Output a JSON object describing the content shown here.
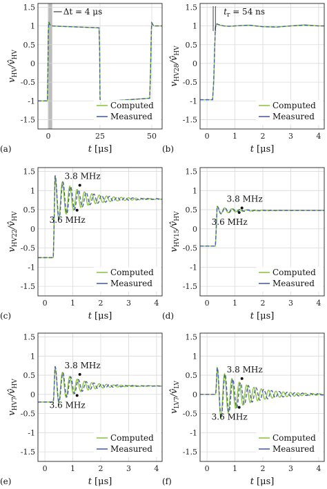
{
  "colors": {
    "computed": "#8cc63f",
    "measured": "#4a5fa0",
    "shade": "#bdbdbd"
  },
  "chart_data": [
    {
      "id": "a",
      "type": "line",
      "panel_tag": "(a)",
      "ylabel_main": "v",
      "ylabel_sub": "HV",
      "ylabel_den": "v̂",
      "ylabel_den_sub": "HV",
      "xlabel_main": "t",
      "xlabel_unit": "[μs]",
      "xlim": [
        -5,
        55
      ],
      "ylim": [
        -1.75,
        1.6
      ],
      "xticks": [
        0,
        25,
        50
      ],
      "xtick_labels": [
        "0",
        "25",
        "50"
      ],
      "yticks": [
        -1.5,
        -1,
        -0.5,
        0,
        0.5,
        1,
        1.5
      ],
      "ytick_labels": [
        "-1.5",
        "-1",
        "-0.5",
        "0",
        "0.5",
        "1",
        "1.5"
      ],
      "shade": [
        -0.2,
        1.9
      ],
      "annotation": "Δt = 4 μs",
      "legend": [
        "Computed",
        "Measured"
      ],
      "series": [
        {
          "name": "Computed",
          "x": [
            -5,
            -0.4,
            -0.2,
            0,
            0.2,
            0.5,
            1,
            2,
            5,
            24.5,
            24.8,
            25,
            25.3,
            26,
            30,
            49,
            49.4,
            49.8,
            50,
            50.4,
            51,
            55
          ],
          "y": [
            -1,
            -1,
            -0.2,
            0.8,
            1.12,
            1.08,
            1.02,
            1.0,
            0.99,
            0.95,
            0.4,
            -0.95,
            -1.1,
            -1.02,
            -1.0,
            -0.93,
            -0.2,
            0.9,
            1.1,
            1.05,
            1.0,
            1.0
          ]
        },
        {
          "name": "Measured",
          "x": [
            -5,
            -0.4,
            -0.2,
            0,
            0.2,
            0.5,
            1,
            2,
            5,
            24.5,
            24.8,
            25,
            25.3,
            26,
            30,
            49,
            49.4,
            49.8,
            50,
            50.4,
            51,
            55
          ],
          "y": [
            -1,
            -1,
            -0.25,
            0.78,
            1.1,
            1.07,
            1.01,
            1.0,
            0.99,
            0.95,
            0.42,
            -0.93,
            -1.08,
            -1.02,
            -1.0,
            -0.93,
            -0.22,
            0.88,
            1.08,
            1.04,
            1.0,
            1.0
          ]
        }
      ]
    },
    {
      "id": "b",
      "type": "line",
      "panel_tag": "(b)",
      "ylabel_main": "v",
      "ylabel_sub": "HV28",
      "ylabel_den": "v̂",
      "ylabel_den_sub": "HV",
      "xlabel_main": "t",
      "xlabel_unit": "[μs]",
      "xlim": [
        -0.25,
        4.2
      ],
      "ylim": [
        -1.75,
        1.6
      ],
      "xticks": [
        0,
        1,
        2,
        3,
        4
      ],
      "xtick_labels": [
        "0",
        "1",
        "2",
        "3",
        "4"
      ],
      "yticks": [
        -1.5,
        -1,
        -0.5,
        0,
        0.5,
        1,
        1.5
      ],
      "ytick_labels": [
        "-1.5",
        "-1",
        "-0.5",
        "0",
        "0.5",
        "1",
        "1.5"
      ],
      "annotation_main": "t",
      "annotation_sub": "r",
      "annotation_rest": " = 54 ns",
      "legend": [
        "Computed",
        "Measured"
      ],
      "series": [
        {
          "name": "Computed",
          "x": [
            -0.25,
            0.2,
            0.24,
            0.28,
            0.3,
            0.35,
            0.45,
            0.6,
            0.8,
            1,
            1.5,
            2,
            2.5,
            3,
            3.5,
            4,
            4.2
          ],
          "y": [
            -0.97,
            -0.97,
            -0.5,
            0.5,
            0.95,
            1.06,
            1.02,
            1.0,
            0.99,
            1.0,
            1.02,
            0.98,
            0.97,
            1.0,
            1.03,
            1.0,
            1.0
          ]
        },
        {
          "name": "Measured",
          "x": [
            -0.25,
            0.2,
            0.24,
            0.28,
            0.3,
            0.35,
            0.45,
            0.6,
            0.8,
            1,
            1.5,
            2,
            2.5,
            3,
            3.5,
            4,
            4.2
          ],
          "y": [
            -0.97,
            -0.97,
            -0.45,
            0.55,
            0.96,
            1.05,
            1.03,
            1.0,
            0.99,
            1.0,
            1.02,
            0.98,
            0.97,
            1.0,
            1.02,
            1.0,
            1.0
          ]
        }
      ]
    },
    {
      "id": "c",
      "type": "line",
      "panel_tag": "(c)",
      "ylabel_main": "v",
      "ylabel_sub": "HV22",
      "ylabel_den": "v̂",
      "ylabel_den_sub": "HV",
      "xlabel_main": "t",
      "xlabel_unit": "[μs]",
      "xlim": [
        -0.25,
        4.2
      ],
      "ylim": [
        -1.75,
        1.6
      ],
      "xticks": [
        0,
        1,
        2,
        3,
        4
      ],
      "xtick_labels": [
        "0",
        "1",
        "2",
        "3",
        "4"
      ],
      "yticks": [
        -1.5,
        -1,
        -0.5,
        0,
        0.5,
        1,
        1.5
      ],
      "ytick_labels": [
        "-1.5",
        "-1",
        "-0.5",
        "0",
        "0.5",
        "1",
        "1.5"
      ],
      "osc": {
        "t0": 0.3,
        "y0": -0.75,
        "final": 0.78,
        "amp": 0.65,
        "tau": 0.9,
        "f_computed": 3.8,
        "f_measured": 3.6
      },
      "annotation_top": "3.8 MHz",
      "annotation_bottom": "3.6 MHz",
      "legend": [
        "Computed",
        "Measured"
      ]
    },
    {
      "id": "d",
      "type": "line",
      "panel_tag": "(d)",
      "ylabel_main": "v",
      "ylabel_sub": "HV15",
      "ylabel_den": "v̂",
      "ylabel_den_sub": "HV",
      "xlabel_main": "t",
      "xlabel_unit": "[μs]",
      "xlim": [
        -0.25,
        4.2
      ],
      "ylim": [
        -1.75,
        1.6
      ],
      "xticks": [
        0,
        1,
        2,
        3,
        4
      ],
      "xtick_labels": [
        "0",
        "1",
        "2",
        "3",
        "4"
      ],
      "yticks": [
        -1.5,
        -1,
        -0.5,
        0,
        0.5,
        1,
        1.5
      ],
      "ytick_labels": [
        "-1.5",
        "-1",
        "-0.5",
        "0",
        "0.5",
        "1",
        "1.5"
      ],
      "osc": {
        "t0": 0.3,
        "y0": -0.45,
        "final": 0.48,
        "amp": 0.12,
        "tau": 0.6,
        "f_computed": 3.8,
        "f_measured": 3.6
      },
      "annotation_top": "3.8 MHz",
      "annotation_bottom": "3.6 MHz",
      "legend": [
        "Computed",
        "Measured"
      ]
    },
    {
      "id": "e",
      "type": "line",
      "panel_tag": "(e)",
      "ylabel_main": "v",
      "ylabel_sub": "HV7",
      "ylabel_den": "v̂",
      "ylabel_den_sub": "HV",
      "xlabel_main": "t",
      "xlabel_unit": "[μs]",
      "xlim": [
        -0.25,
        4.2
      ],
      "ylim": [
        -1.75,
        1.6
      ],
      "xticks": [
        0,
        1,
        2,
        3,
        4
      ],
      "xtick_labels": [
        "0",
        "1",
        "2",
        "3",
        "4"
      ],
      "yticks": [
        -1.5,
        -1,
        -0.5,
        0,
        0.5,
        1,
        1.5
      ],
      "ytick_labels": [
        "-1.5",
        "-1",
        "-0.5",
        "0",
        "0.5",
        "1",
        "1.5"
      ],
      "osc": {
        "t0": 0.3,
        "y0": -0.2,
        "final": 0.22,
        "amp": 0.55,
        "tau": 0.75,
        "f_computed": 3.8,
        "f_measured": 3.6
      },
      "annotation_top": "3.8 MHz",
      "annotation_bottom": "3.6 MHz",
      "legend": [
        "Computed",
        "Measured"
      ]
    },
    {
      "id": "f",
      "type": "line",
      "panel_tag": "(f)",
      "ylabel_main": "v",
      "ylabel_sub": "LV7",
      "ylabel_den": "v̂",
      "ylabel_den_sub": "LV",
      "xlabel_main": "t",
      "xlabel_unit": "[μs]",
      "xlim": [
        -0.25,
        4.2
      ],
      "ylim": [
        -1.75,
        1.6
      ],
      "xticks": [
        0,
        1,
        2,
        3,
        4
      ],
      "xtick_labels": [
        "0",
        "1",
        "2",
        "3",
        "4"
      ],
      "yticks": [
        -1.5,
        -1,
        -0.5,
        0,
        0.5,
        1,
        1.5
      ],
      "ytick_labels": [
        "-1.5",
        "-1",
        "-0.5",
        "0",
        "0.5",
        "1",
        "1.5"
      ],
      "osc": {
        "t0": 0.3,
        "y0": 0.0,
        "final": 0.0,
        "amp": 0.75,
        "tau": 1.0,
        "f_computed": 3.8,
        "f_measured": 3.6
      },
      "annotation_top": "3.8 MHz",
      "annotation_bottom": "3.6 MHz",
      "legend": [
        "Computed",
        "Measured"
      ]
    }
  ]
}
